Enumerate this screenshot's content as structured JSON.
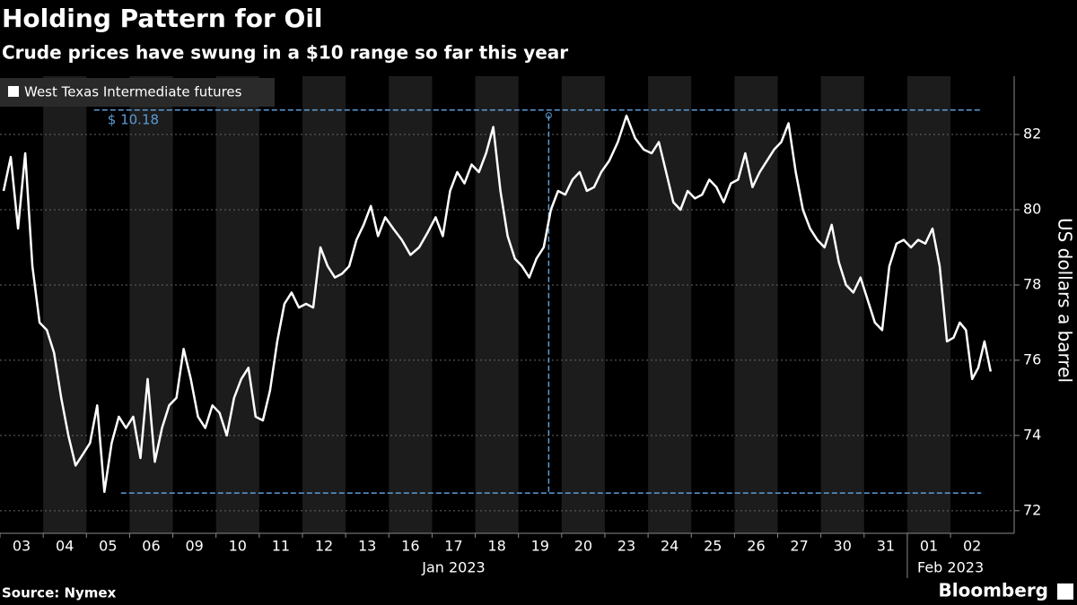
{
  "chart_data": {
    "type": "line",
    "title": "Holding Pattern for Oil",
    "subtitle": "Crude prices have swung in a $10 range so far this year",
    "y_label": "US dollars a barrel",
    "source": "Source: Nymex",
    "brand": "Bloomberg",
    "categories": [
      "03",
      "04",
      "05",
      "06",
      "09",
      "10",
      "11",
      "12",
      "13",
      "16",
      "17",
      "18",
      "19",
      "20",
      "23",
      "24",
      "25",
      "26",
      "27",
      "30",
      "31",
      "01",
      "02"
    ],
    "months": [
      {
        "label": "Jan 2023",
        "first": 0,
        "last": 20
      },
      {
        "label": "Feb 2023",
        "first": 21,
        "last": 22
      }
    ],
    "series": [
      {
        "name": "West Texas Intermediate futures",
        "color": "#ffffff",
        "values": [
          [
            80.5,
            81.4,
            79.5,
            81.5,
            78.5,
            77.0
          ],
          [
            76.8,
            76.2,
            75.0,
            74.0,
            73.2,
            73.5
          ],
          [
            73.8,
            74.8,
            72.5,
            73.8,
            74.5,
            74.2
          ],
          [
            74.5,
            73.4,
            75.5,
            73.3,
            74.2,
            74.8
          ],
          [
            75.0,
            76.3,
            75.5,
            74.5,
            74.2,
            74.8
          ],
          [
            74.6,
            74.0,
            75.0,
            75.5,
            75.8,
            74.5
          ],
          [
            74.4,
            75.2,
            76.5,
            77.5,
            77.8,
            77.4
          ],
          [
            77.5,
            77.4,
            79.0,
            78.5,
            78.2,
            78.3
          ],
          [
            78.5,
            79.2,
            79.6,
            80.1,
            79.3,
            79.8
          ],
          [
            79.5,
            79.2,
            78.8,
            79.0,
            79.4
          ],
          [
            79.8,
            79.3,
            80.5,
            81.0,
            80.7,
            81.2
          ],
          [
            81.0,
            81.5,
            82.2,
            80.5,
            79.3,
            78.7
          ],
          [
            78.5,
            78.2,
            78.7,
            79.0,
            80.0,
            80.5
          ],
          [
            80.4,
            80.8,
            81.0,
            80.5,
            80.6,
            81.0
          ],
          [
            81.3,
            81.8,
            82.5,
            81.9,
            81.6
          ],
          [
            81.5,
            81.8,
            81.0,
            80.2,
            80.0,
            80.5
          ],
          [
            80.3,
            80.4,
            80.8,
            80.6,
            80.2,
            80.7
          ],
          [
            80.8,
            81.5,
            80.6,
            81.0,
            81.3,
            81.6
          ],
          [
            81.8,
            82.3,
            81.0,
            80.0,
            79.5,
            79.2
          ],
          [
            79.0,
            79.6,
            78.6,
            78.0,
            77.8,
            78.2
          ],
          [
            77.6,
            77.0,
            76.8,
            78.5,
            79.1,
            79.2
          ],
          [
            79.0,
            79.2,
            79.1,
            79.5,
            78.5,
            76.5
          ],
          [
            76.6,
            77.0,
            76.8,
            75.5,
            75.8,
            76.5,
            75.7
          ]
        ]
      }
    ],
    "annotation": {
      "label": "$ 10.18",
      "high": 82.65,
      "low": 72.47,
      "color": "#5b9bd5"
    },
    "ylim": [
      71.4,
      83.55
    ],
    "yticks": [
      72,
      74,
      76,
      78,
      80,
      82
    ],
    "grid": true,
    "legend": "top-left"
  }
}
